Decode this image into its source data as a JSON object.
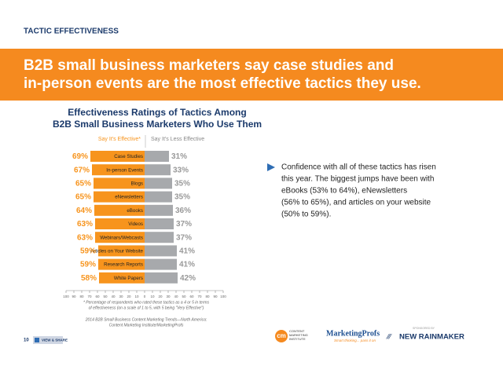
{
  "header": {
    "section": "TACTIC EFFECTIVENESS",
    "headline": [
      "B2B small business marketers say case studies and",
      "in-person events are the most effective tactics they use."
    ]
  },
  "chart_data": {
    "type": "diverging-bar",
    "title": [
      "Effectiveness Ratings of Tactics Among",
      "B2B Small Business Marketers Who Use Them"
    ],
    "categories": [
      "Case Studies",
      "In-person Events",
      "Blogs",
      "eNewsletters",
      "eBooks",
      "Videos",
      "Webinars/Webcasts",
      "Articles on Your Website",
      "Research Reports",
      "White Papers"
    ],
    "series": [
      {
        "name": "Say It's Effective*",
        "color": "#f7941d",
        "values": [
          69,
          67,
          65,
          65,
          64,
          63,
          63,
          59,
          59,
          58
        ],
        "value_labels": [
          "69%",
          "67%",
          "65%",
          "65%",
          "64%",
          "63%",
          "63%",
          "59%",
          "59%",
          "58%"
        ]
      },
      {
        "name": "Say It's Less Effective",
        "color": "#a7a9ac",
        "values": [
          31,
          33,
          35,
          35,
          36,
          37,
          37,
          41,
          41,
          42
        ],
        "value_labels": [
          "31%",
          "33%",
          "35%",
          "35%",
          "36%",
          "37%",
          "37%",
          "41%",
          "41%",
          "42%"
        ]
      }
    ],
    "xlim": [
      -100,
      100
    ],
    "xticks": [
      {
        "value": -100,
        "label": "100"
      },
      {
        "value": -90,
        "label": "90"
      },
      {
        "value": -80,
        "label": "80"
      },
      {
        "value": -70,
        "label": "70"
      },
      {
        "value": -60,
        "label": "60"
      },
      {
        "value": -50,
        "label": "50"
      },
      {
        "value": -40,
        "label": "40"
      },
      {
        "value": -30,
        "label": "30"
      },
      {
        "value": -20,
        "label": "20"
      },
      {
        "value": -10,
        "label": "10"
      },
      0,
      10,
      20,
      30,
      40,
      50,
      60,
      70,
      80,
      90,
      100
    ],
    "footnote": [
      "* Percentage of respondents who rated these tactics as a 4 or 5 in terms",
      "of effectiveness (on a scale of 1 to 5, with 5 being \"Very Effective\")"
    ],
    "source": [
      "2014 B2B Small Business Content Marketing Trends—North America:",
      "Content Marketing Institute/MarketingProfs"
    ]
  },
  "insight": [
    "Confidence with all of these tactics has risen",
    "this year. The biggest jumps have been with",
    "eBooks (53% to 64%), eNewsletters",
    "(56% to 65%), and articles on your website",
    "(50% to 59%)."
  ],
  "footer": {
    "page": "10",
    "share": "VIEW & SHARE",
    "cmi": [
      "CONTENT",
      "MARKETING",
      "INSTITUTE"
    ],
    "mprofs": "MarketingProfs",
    "mprofs_tag": "Smart thinking... pass it on",
    "sponsor": "SPONSORED BY",
    "rainmaker": "NEW RAINMAKER"
  }
}
